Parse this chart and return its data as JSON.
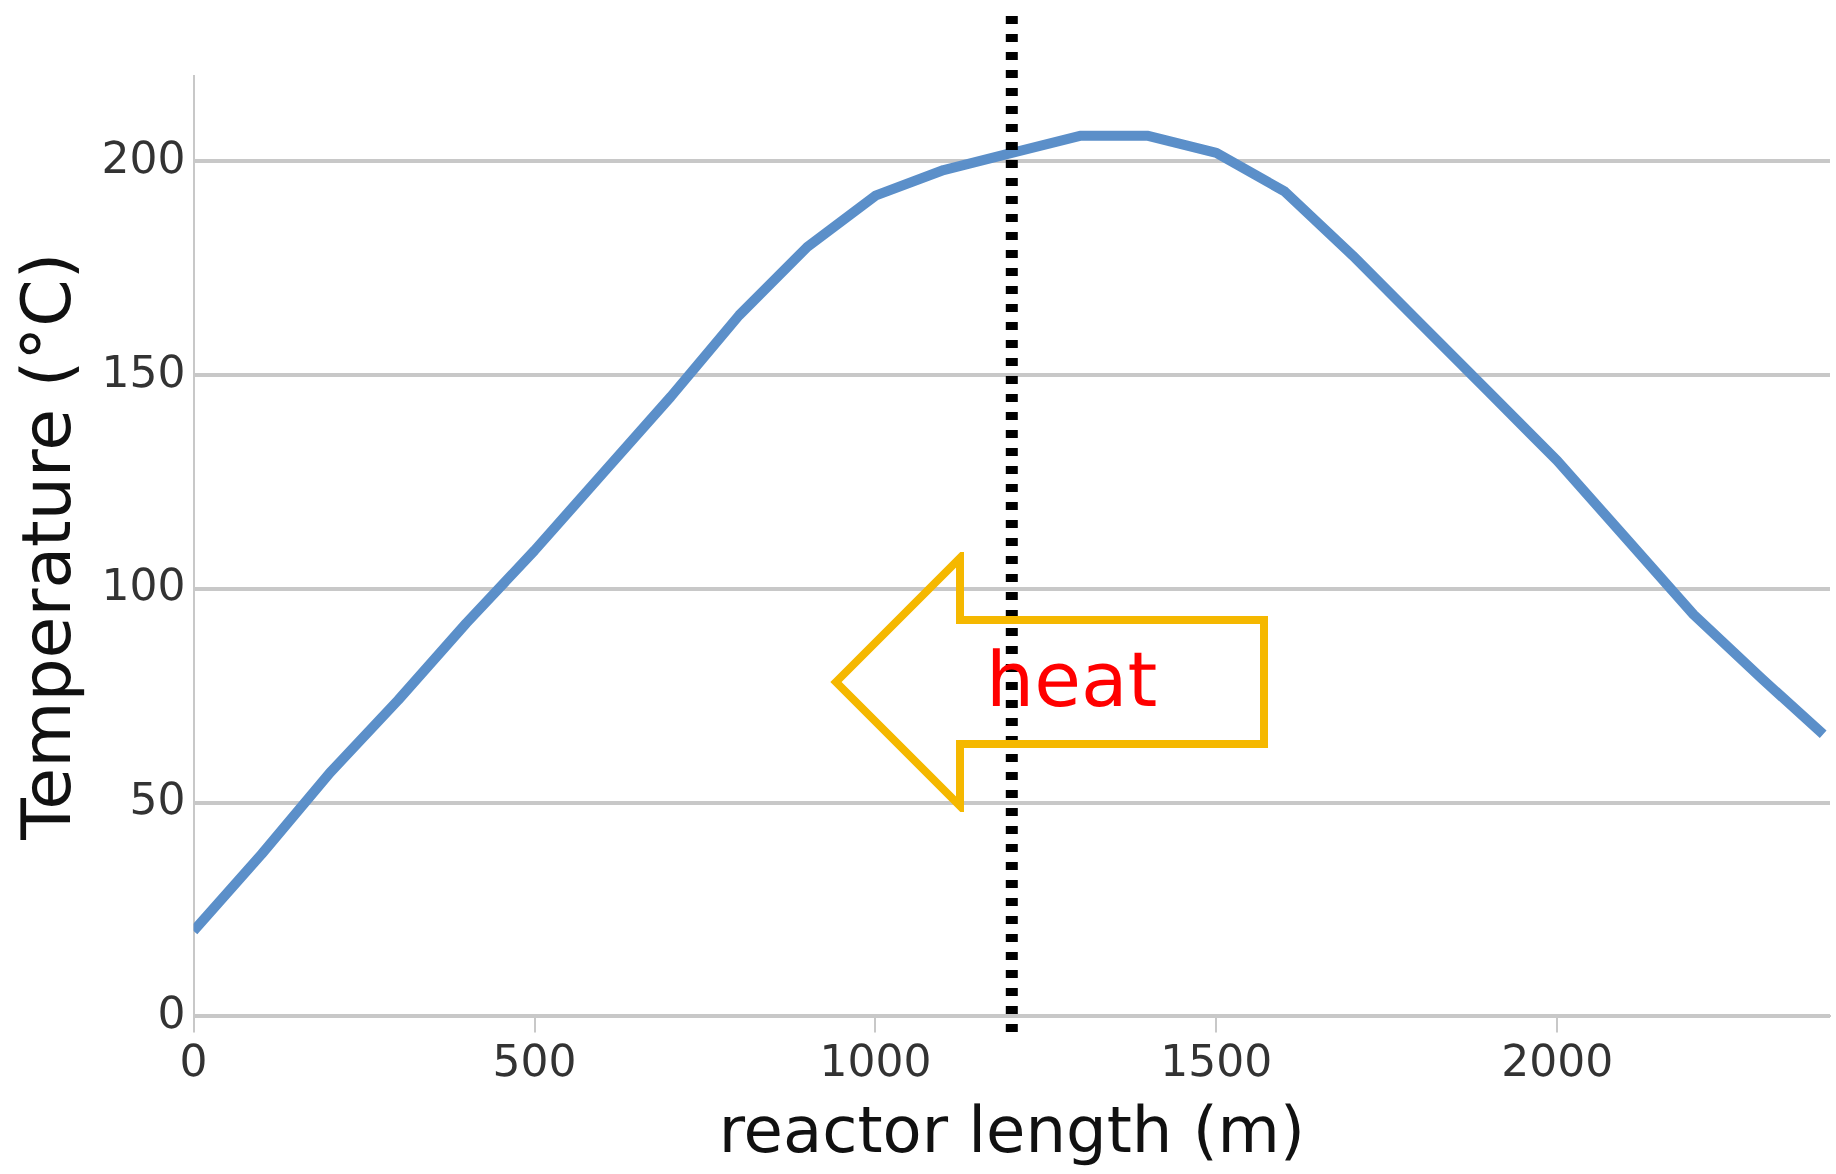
{
  "chart_data": {
    "type": "line",
    "xlabel": "reactor length (m)",
    "ylabel": "Temperature (°C)",
    "x": [
      0,
      100,
      200,
      300,
      400,
      500,
      600,
      700,
      800,
      900,
      1000,
      1100,
      1200,
      1300,
      1400,
      1500,
      1600,
      1700,
      1800,
      1900,
      2000,
      2100,
      2200,
      2300,
      2390
    ],
    "series": [
      {
        "color": "#5b8fc9",
        "values": [
          20,
          38,
          57,
          74,
          92,
          109,
          127,
          145,
          164,
          180,
          192,
          198,
          202,
          206,
          206,
          202,
          193,
          178,
          162,
          146,
          130,
          112,
          94,
          79,
          66
        ]
      }
    ],
    "xlim": [
      0,
      2400
    ],
    "xticks": [
      0,
      500,
      1000,
      1500,
      2000
    ],
    "ylim": [
      0,
      220
    ],
    "yticks": [
      0,
      50,
      100,
      150,
      200
    ],
    "grid": "y",
    "legend": false,
    "marker": "none",
    "line_style": "solid",
    "ref_lines": [
      {
        "axis": "x",
        "value": 1200,
        "color": "#000000",
        "line_style": "dotted"
      }
    ],
    "annotations": [
      "heat"
    ]
  }
}
